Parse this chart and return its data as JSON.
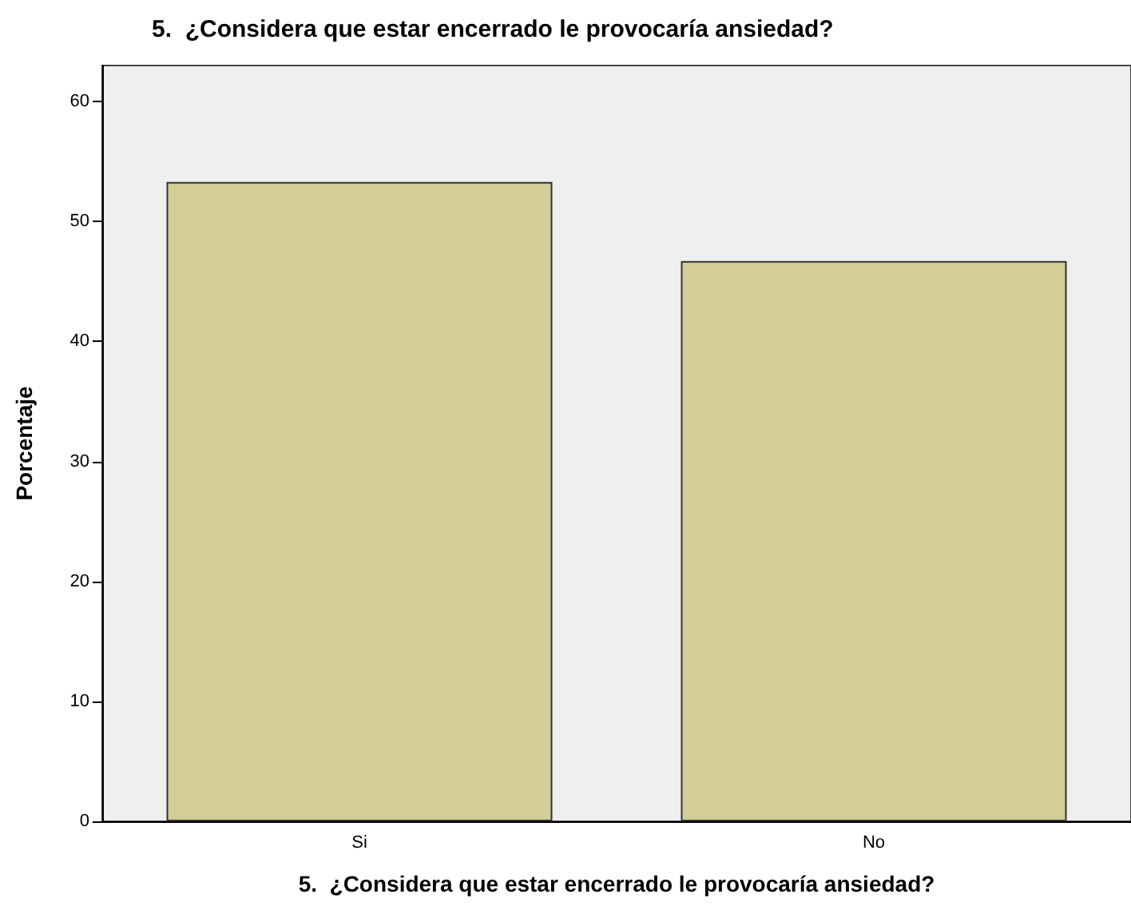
{
  "chart_data": {
    "type": "bar",
    "title": "5.  ¿Considera que estar encerrado le provocaría ansiedad?",
    "xlabel": "5.  ¿Considera que estar encerrado le provocaría ansiedad?",
    "ylabel": "Porcentaje",
    "categories": [
      "Si",
      "No"
    ],
    "values": [
      53.3,
      46.7
    ],
    "color": "#d3cd97",
    "ylim": [
      0,
      63
    ],
    "yticks": [
      0,
      10,
      20,
      30,
      40,
      50,
      60
    ],
    "grid": false
  }
}
